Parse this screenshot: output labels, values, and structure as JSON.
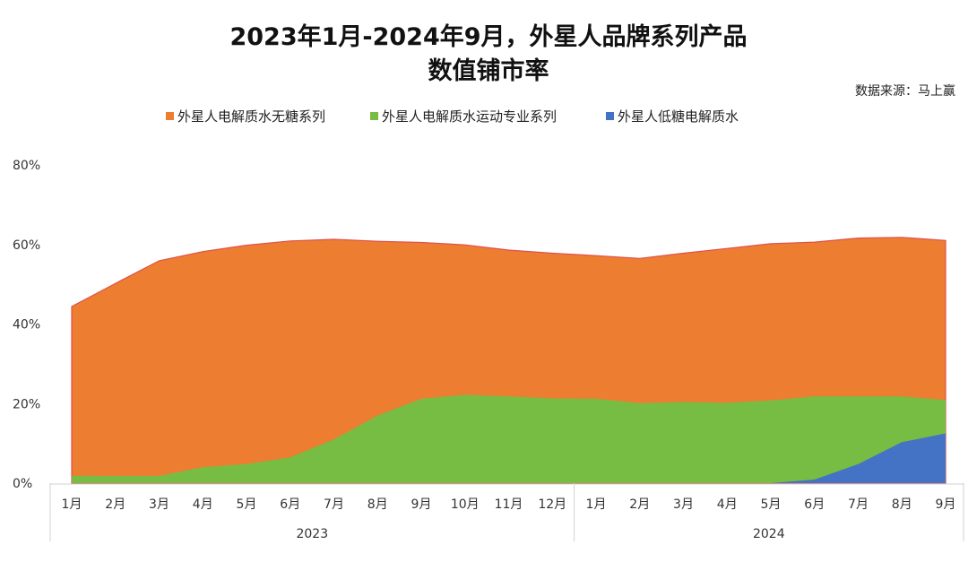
{
  "chart_data": {
    "type": "area",
    "title_line1": "2023年1月-2024年9月，外星人品牌系列产品",
    "title_line2": "数值铺市率",
    "source": "数据来源：马上赢",
    "xlabel": "",
    "ylabel": "",
    "ylim": [
      0,
      80
    ],
    "yticks": [
      "0%",
      "20%",
      "40%",
      "60%",
      "80%"
    ],
    "ytick_values": [
      0,
      20,
      40,
      60,
      80
    ],
    "grid": false,
    "legend_position": "top",
    "categories": [
      "1月",
      "2月",
      "3月",
      "4月",
      "5月",
      "6月",
      "7月",
      "8月",
      "9月",
      "10月",
      "11月",
      "12月",
      "1月",
      "2月",
      "3月",
      "4月",
      "5月",
      "6月",
      "7月",
      "8月",
      "9月"
    ],
    "groups": [
      {
        "label": "2023",
        "count": 12
      },
      {
        "label": "2024",
        "count": 9
      }
    ],
    "series": [
      {
        "name": "外星人电解质水无糖系列",
        "color": "#ED7D31",
        "values": [
          44.4,
          50.2,
          55.9,
          58.2,
          59.8,
          60.9,
          61.3,
          60.8,
          60.5,
          59.9,
          58.6,
          57.8,
          57.2,
          56.5,
          57.8,
          59.0,
          60.2,
          60.6,
          61.6,
          61.8,
          61.0
        ]
      },
      {
        "name": "外星人电解质水运动专业系列",
        "color": "#77BD43",
        "values": [
          1.9,
          1.8,
          1.8,
          4.0,
          4.8,
          6.5,
          11.0,
          17.0,
          21.2,
          22.2,
          21.8,
          21.3,
          21.2,
          20.1,
          20.4,
          20.2,
          20.8,
          21.8,
          21.8,
          21.8,
          20.9
        ]
      },
      {
        "name": "外星人低糖电解质水",
        "color": "#4472C4",
        "values": [
          0,
          0,
          0,
          0,
          0,
          0,
          0,
          0,
          0,
          0,
          0,
          0,
          0,
          0,
          0,
          0,
          0,
          0.9,
          4.8,
          10.3,
          12.5
        ]
      }
    ]
  }
}
